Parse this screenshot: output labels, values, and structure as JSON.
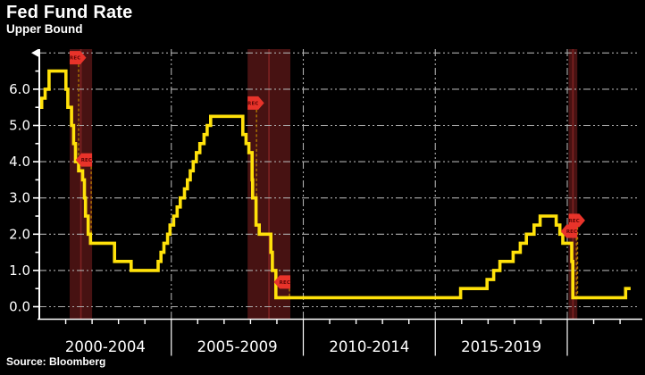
{
  "header": {
    "title": "Fed Fund Rate",
    "subtitle": "Upper Bound"
  },
  "footer": {
    "source": "Source: Bloomberg"
  },
  "colors": {
    "background": "#000000",
    "line": "#ffe10a",
    "grid": "#adadad",
    "axis": "#ffffff",
    "text": "#ffffff",
    "recession_band": "#471212",
    "recession_midline": "#7e2222",
    "flag_fill": "#e8332a",
    "flag_text": "#5c0404",
    "drop_line": "#b07800"
  },
  "chart_data": {
    "type": "line",
    "step": true,
    "title": "Fed Fund Rate",
    "subtitle": "Upper Bound",
    "xlabel": "",
    "ylabel": "",
    "ylim": [
      -0.35,
      7.3
    ],
    "xlim_years": [
      2000,
      2022.64
    ],
    "grid": "dash-dot",
    "y_axis": {
      "tick_labels": [
        "0.0",
        "1.0",
        "2.0",
        "3.0",
        "4.0",
        "5.0",
        "6.0"
      ],
      "gridline_values": [
        0,
        1,
        2,
        3,
        4,
        5,
        6,
        7
      ],
      "minor_tick_interval": 0.5
    },
    "x_axis": {
      "period_labels": [
        "2000-2004",
        "2005-2009",
        "2010-2014",
        "2015-2019"
      ],
      "period_boundaries_years": [
        2000,
        2005,
        2010,
        2015,
        2020
      ],
      "minor_tick_interval_years": 1
    },
    "series": [
      {
        "name": "Fed Fund Rate Upper Bound",
        "end_year": 2022.4,
        "points": [
          [
            2000.0,
            5.5
          ],
          [
            2000.09,
            5.75
          ],
          [
            2000.22,
            6.0
          ],
          [
            2000.37,
            6.5
          ],
          [
            2001.01,
            6.0
          ],
          [
            2001.08,
            5.5
          ],
          [
            2001.22,
            5.0
          ],
          [
            2001.3,
            4.5
          ],
          [
            2001.37,
            4.0
          ],
          [
            2001.49,
            3.75
          ],
          [
            2001.64,
            3.5
          ],
          [
            2001.71,
            3.0
          ],
          [
            2001.75,
            2.5
          ],
          [
            2001.85,
            2.0
          ],
          [
            2001.94,
            1.75
          ],
          [
            2002.85,
            1.25
          ],
          [
            2003.48,
            1.0
          ],
          [
            2004.5,
            1.25
          ],
          [
            2004.61,
            1.5
          ],
          [
            2004.72,
            1.75
          ],
          [
            2004.86,
            2.0
          ],
          [
            2004.95,
            2.25
          ],
          [
            2005.09,
            2.5
          ],
          [
            2005.22,
            2.75
          ],
          [
            2005.34,
            3.0
          ],
          [
            2005.5,
            3.25
          ],
          [
            2005.61,
            3.5
          ],
          [
            2005.72,
            3.75
          ],
          [
            2005.83,
            4.0
          ],
          [
            2005.95,
            4.25
          ],
          [
            2006.08,
            4.5
          ],
          [
            2006.24,
            4.75
          ],
          [
            2006.36,
            5.0
          ],
          [
            2006.49,
            5.25
          ],
          [
            2007.71,
            4.75
          ],
          [
            2007.83,
            4.5
          ],
          [
            2007.94,
            4.25
          ],
          [
            2008.06,
            3.5
          ],
          [
            2008.08,
            3.0
          ],
          [
            2008.21,
            2.25
          ],
          [
            2008.33,
            2.0
          ],
          [
            2008.77,
            1.5
          ],
          [
            2008.83,
            1.0
          ],
          [
            2008.96,
            0.25
          ],
          [
            2015.96,
            0.5
          ],
          [
            2016.96,
            0.75
          ],
          [
            2017.21,
            1.0
          ],
          [
            2017.45,
            1.25
          ],
          [
            2017.95,
            1.5
          ],
          [
            2018.22,
            1.75
          ],
          [
            2018.45,
            2.0
          ],
          [
            2018.74,
            2.25
          ],
          [
            2018.97,
            2.5
          ],
          [
            2019.58,
            2.25
          ],
          [
            2019.72,
            2.0
          ],
          [
            2019.83,
            1.75
          ],
          [
            2020.17,
            1.25
          ],
          [
            2020.21,
            0.25
          ],
          [
            2022.21,
            0.5
          ]
        ]
      }
    ],
    "recessions": [
      {
        "start_year": 2001.15,
        "end_year": 2002.0,
        "flags": [
          {
            "year": 2001.15,
            "value": 6.87,
            "dir": "right",
            "label": "REC"
          },
          {
            "year": 2002.0,
            "value": 4.05,
            "dir": "left",
            "label": "REC"
          }
        ]
      },
      {
        "start_year": 2007.89,
        "end_year": 2009.51,
        "flags": [
          {
            "year": 2007.89,
            "value": 5.62,
            "dir": "right",
            "label": "REC"
          },
          {
            "year": 2009.51,
            "value": 0.68,
            "dir": "left",
            "label": "REC"
          }
        ]
      },
      {
        "start_year": 2020.05,
        "end_year": 2020.38,
        "flags": [
          {
            "year": 2020.05,
            "value": 2.38,
            "dir": "right",
            "label": "REC"
          },
          {
            "year": 2020.38,
            "value": 2.08,
            "dir": "left",
            "label": "REC"
          }
        ]
      }
    ]
  }
}
